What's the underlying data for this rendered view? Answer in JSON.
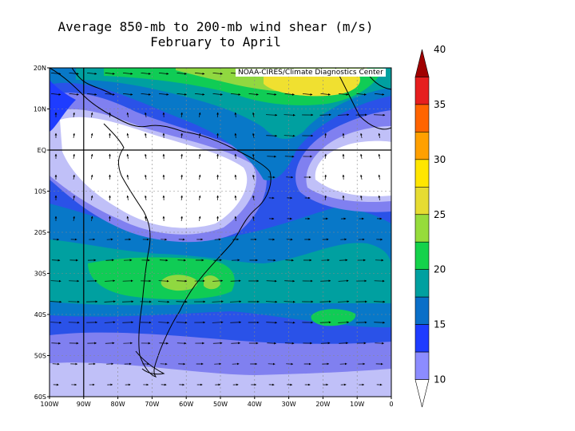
{
  "title": {
    "line1": "Average 850-mb to 200-mb wind shear (m/s)",
    "line2": "February to April"
  },
  "credit": "NOAA-CIRES/Climate Diagnostics Center",
  "map": {
    "lon_range": [
      -100,
      0
    ],
    "lat_range": [
      -60,
      20
    ],
    "x_tick_labels": [
      "100W",
      "90W",
      "80W",
      "70W",
      "60W",
      "50W",
      "40W",
      "30W",
      "20W",
      "10W",
      "0"
    ],
    "y_tick_labels": [
      "20N",
      "10N",
      "EQ",
      "10S",
      "20S",
      "30S",
      "40S",
      "50S",
      "60S"
    ],
    "reference_lines": {
      "equator_lat": 0,
      "meridian_lon": -90
    }
  },
  "colorbar": {
    "levels": [
      10,
      15,
      20,
      25,
      30,
      35,
      40
    ],
    "labels": [
      "10",
      "15",
      "20",
      "25",
      "30",
      "35",
      "40"
    ],
    "colors": [
      "#c8c8ff",
      "#8c8cff",
      "#1e3cff",
      "#0a6fc8",
      "#00a0a0",
      "#14d24b",
      "#96dc3c",
      "#e6dc32",
      "#ffe600",
      "#ffa000",
      "#ff6400",
      "#e61e1e",
      "#a00000"
    ]
  }
}
